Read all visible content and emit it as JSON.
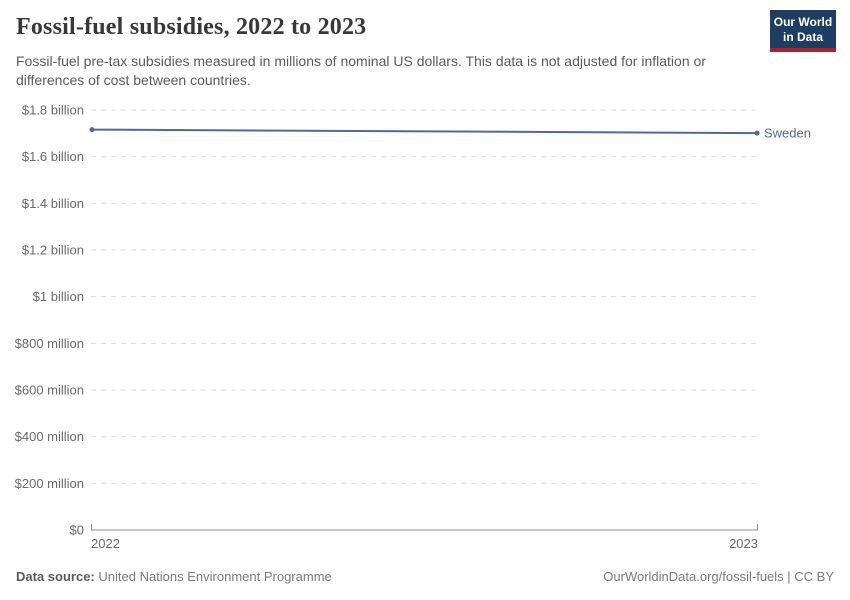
{
  "header": {
    "title": "Fossil-fuel subsidies, 2022 to 2023",
    "subtitle": "Fossil-fuel pre-tax subsidies measured in millions of nominal US dollars. This data is not adjusted for inflation or differences of cost between countries.",
    "logo": {
      "line1": "Our World",
      "line2": "in Data",
      "bg_color": "#1d3d63",
      "bar_color": "#a8232a"
    }
  },
  "chart_data": {
    "type": "line",
    "title": "Fossil-fuel subsidies, 2022 to 2023",
    "x": [
      2022,
      2023
    ],
    "series": [
      {
        "name": "Sweden",
        "color": "#4c6a9c",
        "values": [
          1716,
          1701
        ]
      }
    ],
    "ylim": [
      0,
      1800
    ],
    "yticks": [
      {
        "value": 0,
        "label": "$0"
      },
      {
        "value": 200,
        "label": "$200 million"
      },
      {
        "value": 400,
        "label": "$400 million"
      },
      {
        "value": 600,
        "label": "$600 million"
      },
      {
        "value": 800,
        "label": "$800 million"
      },
      {
        "value": 1000,
        "label": "$1 billion"
      },
      {
        "value": 1200,
        "label": "$1.2 billion"
      },
      {
        "value": 1400,
        "label": "$1.4 billion"
      },
      {
        "value": 1600,
        "label": "$1.6 billion"
      },
      {
        "value": 1800,
        "label": "$1.8 billion"
      }
    ],
    "xtick_labels": [
      "2022",
      "2023"
    ],
    "grid": "horizontal-dashed",
    "legend_position": "end-of-line",
    "colors": {
      "grid": "#dcdcdc",
      "axis": "#8f8f8f",
      "tick_text": "#6a6a6a"
    }
  },
  "footer": {
    "datasource_label": "Data source:",
    "datasource_value": "United Nations Environment Programme",
    "credit": "OurWorldinData.org/fossil-fuels | CC BY"
  }
}
